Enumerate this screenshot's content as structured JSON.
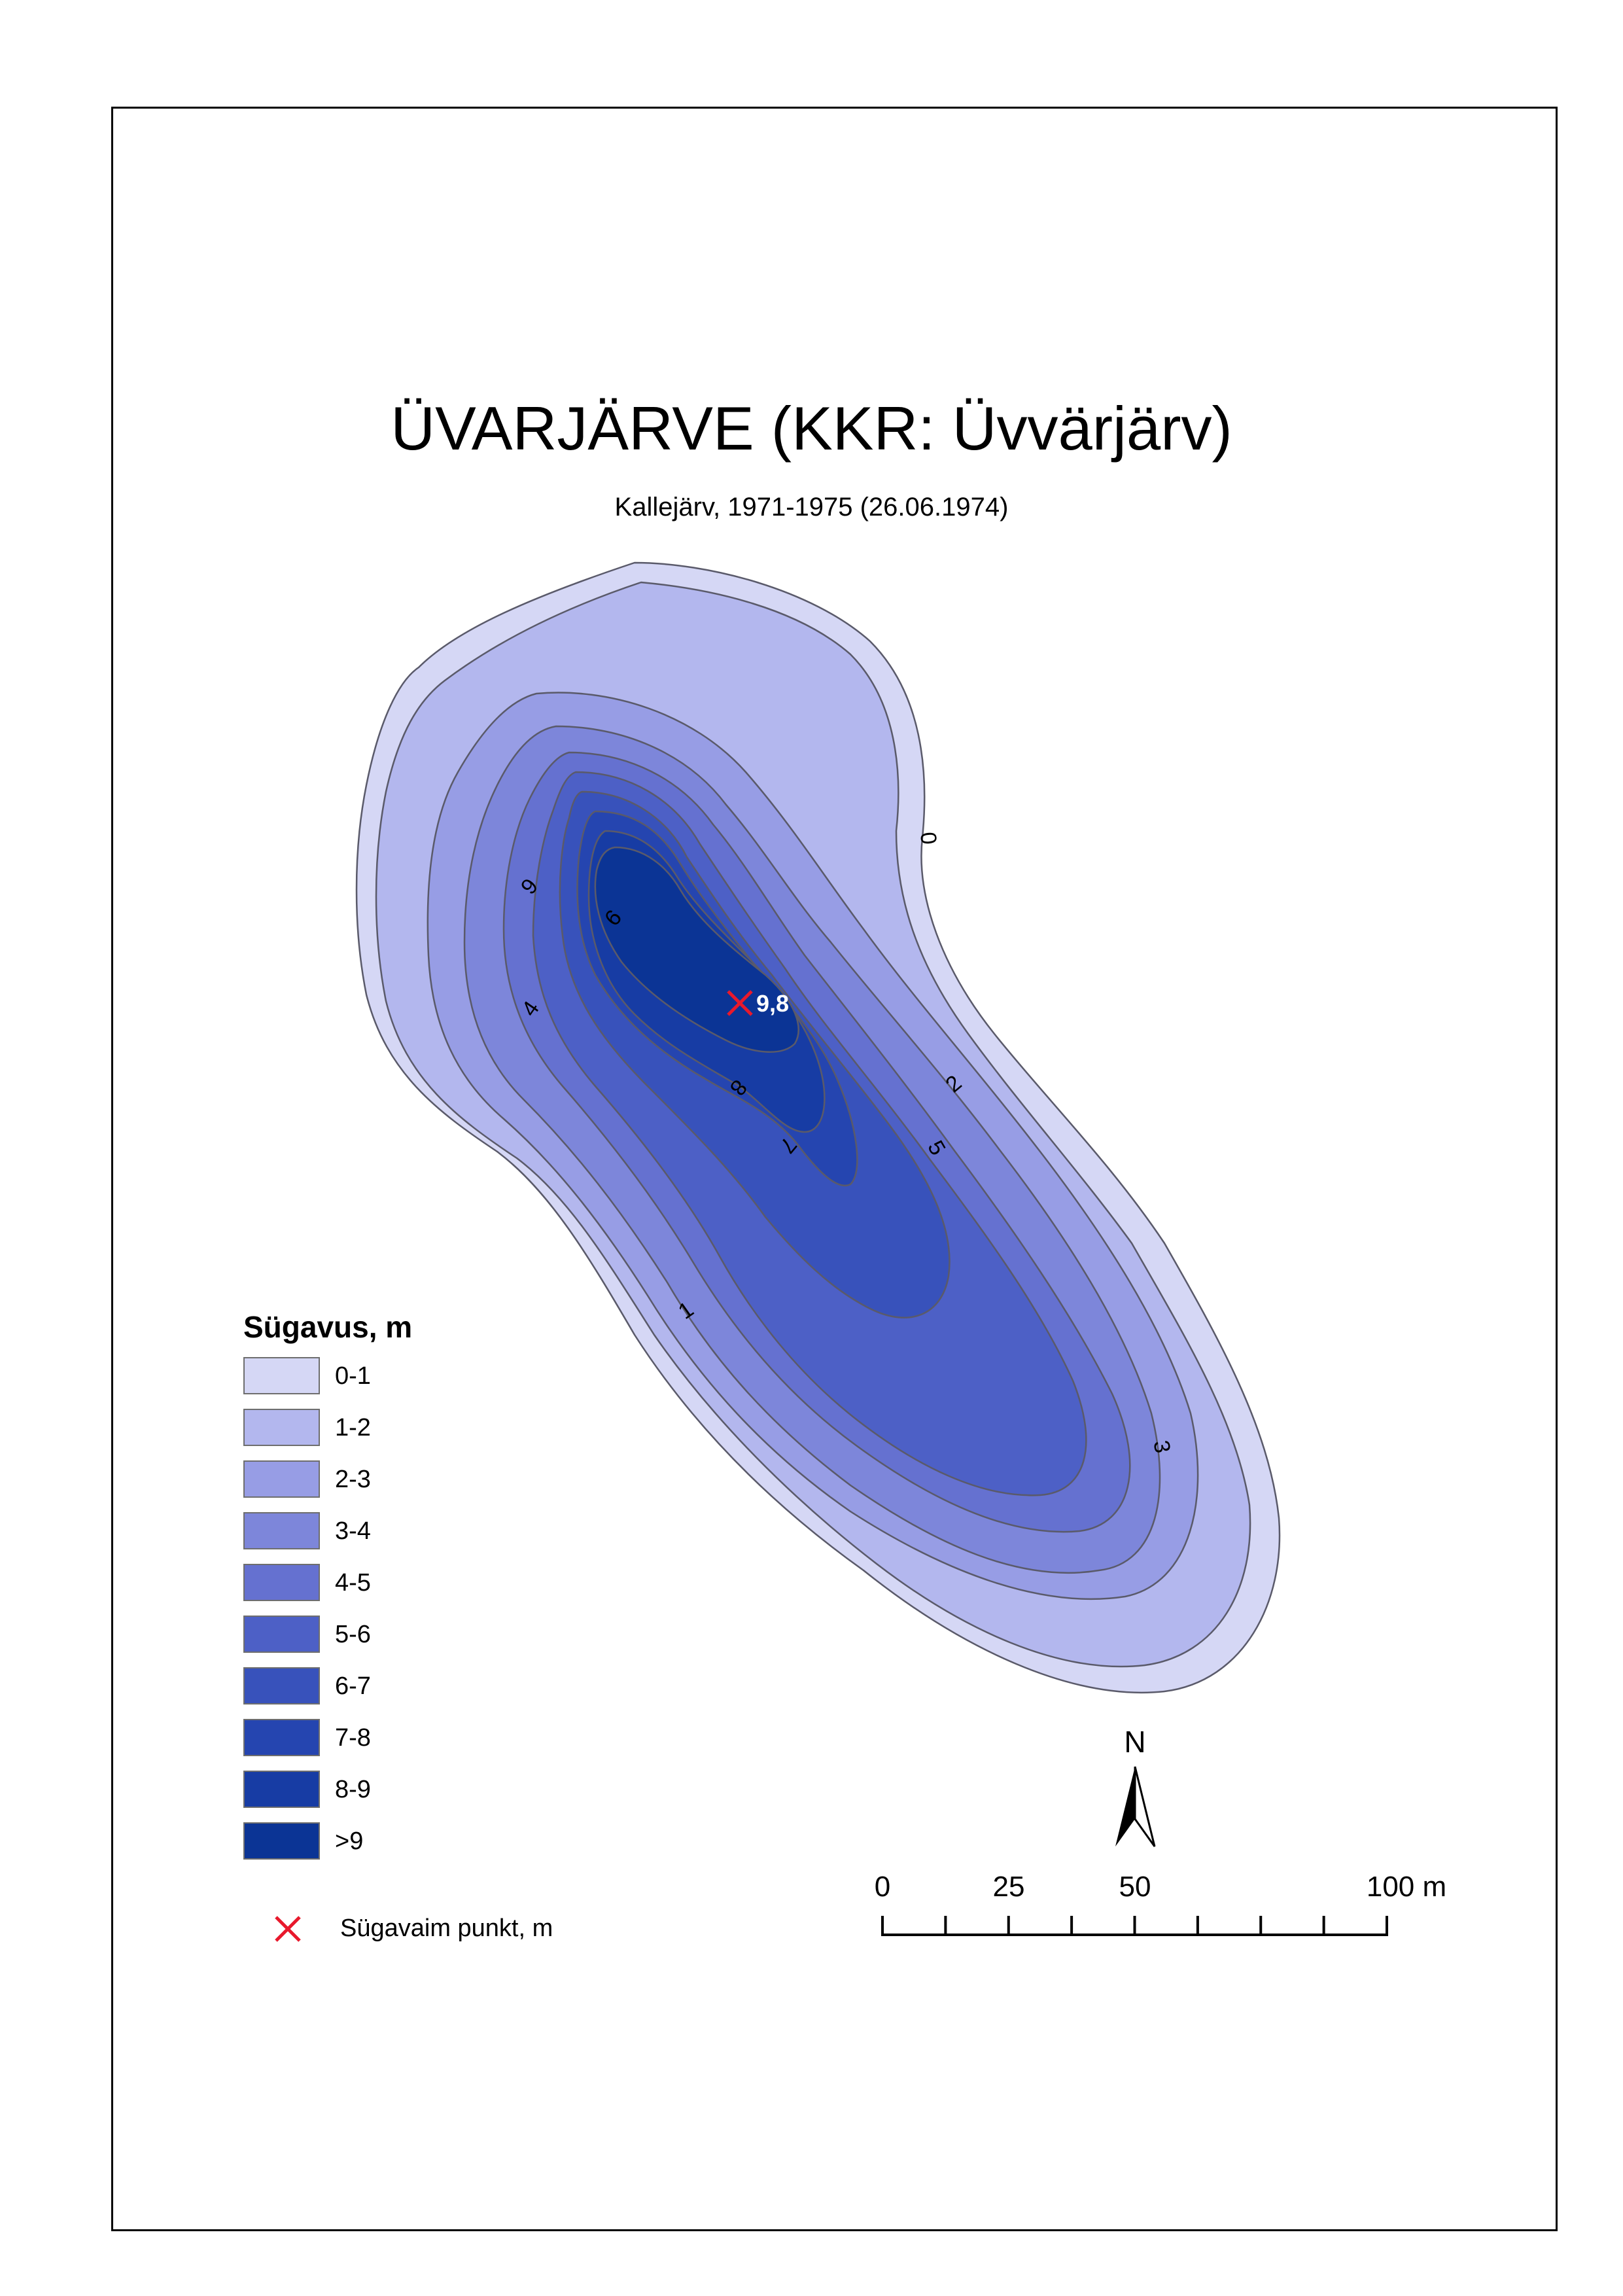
{
  "title": "ÜVARJÄRVE (KKR: Üvvärjärv)",
  "subtitle": "Kallejärv, 1971-1975 (26.06.1974)",
  "deepest_point": {
    "value": "9,8",
    "color": "#e8192c"
  },
  "contour_labels": [
    "0",
    "1",
    "2",
    "3",
    "4",
    "5",
    "6",
    "7",
    "8",
    "9"
  ],
  "legend": {
    "title": "Sügavus, m",
    "items": [
      {
        "label": "0-1",
        "color": "#d5d7f5"
      },
      {
        "label": "1-2",
        "color": "#b3b7ee"
      },
      {
        "label": "2-3",
        "color": "#979de5"
      },
      {
        "label": "3-4",
        "color": "#7d86da"
      },
      {
        "label": "4-5",
        "color": "#6571d0"
      },
      {
        "label": "5-6",
        "color": "#4d60c6"
      },
      {
        "label": "6-7",
        "color": "#3852bb"
      },
      {
        "label": "7-8",
        "color": "#2545b0"
      },
      {
        "label": "8-9",
        "color": "#173ca4"
      },
      {
        "label": ">9",
        "color": "#0b3495"
      }
    ],
    "deepest_label": "Sügavaim punkt, m"
  },
  "north_arrow": {
    "label": "N"
  },
  "scale_bar": {
    "labels": [
      "0",
      "25",
      "50",
      "100 m"
    ],
    "values_m": [
      0,
      25,
      50,
      100
    ]
  }
}
